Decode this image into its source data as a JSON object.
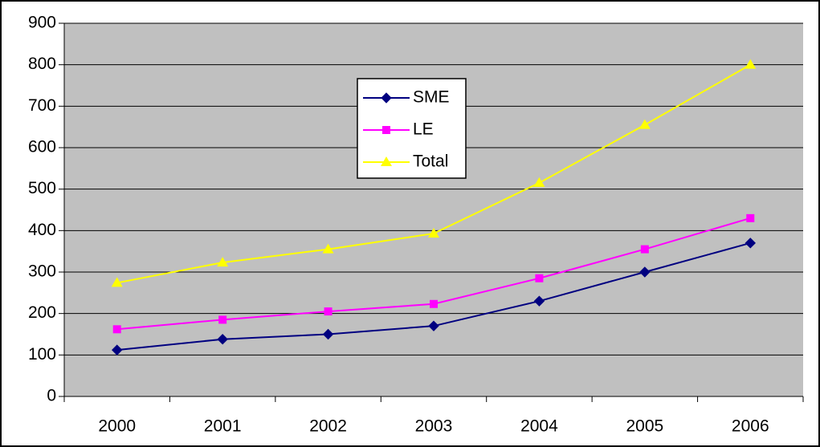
{
  "chart_data": {
    "type": "line",
    "categories": [
      "2000",
      "2001",
      "2002",
      "2003",
      "2004",
      "2005",
      "2006"
    ],
    "series": [
      {
        "name": "SME",
        "color": "#000080",
        "marker": "diamond",
        "values": [
          112,
          138,
          150,
          170,
          230,
          300,
          370
        ]
      },
      {
        "name": "LE",
        "color": "#ff00ff",
        "marker": "square",
        "values": [
          162,
          185,
          205,
          223,
          285,
          355,
          430
        ]
      },
      {
        "name": "Total",
        "color": "#ffff00",
        "marker": "triangle",
        "values": [
          274,
          323,
          355,
          393,
          515,
          655,
          800
        ]
      }
    ],
    "ylim": [
      0,
      900
    ],
    "yticks": [
      0,
      100,
      200,
      300,
      400,
      500,
      600,
      700,
      800,
      900
    ],
    "grid": true,
    "plot_background": "#c0c0c0"
  }
}
